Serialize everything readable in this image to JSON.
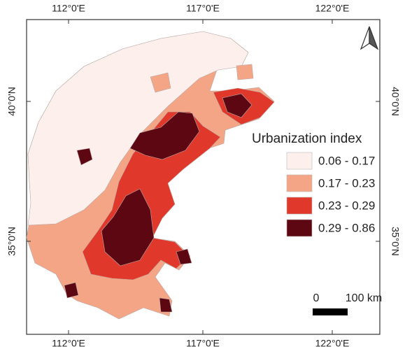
{
  "map": {
    "graticule": {
      "top": [
        "112°0'E",
        "117°0'E",
        "122°0'E"
      ],
      "bottom": [
        "112°0'E",
        "117°0'E",
        "122°0'E"
      ],
      "left": [
        "40°0'N",
        "35°0'N"
      ],
      "right": [
        "40°0'N",
        "35°0'N"
      ]
    },
    "legend": {
      "title": "Urbanization index",
      "items": [
        {
          "label": "0.06 - 0.17",
          "color": "#fdf0ec"
        },
        {
          "label": "0.17 - 0.23",
          "color": "#f4a585"
        },
        {
          "label": "0.23 - 0.29",
          "color": "#e0392b"
        },
        {
          "label": "0.29 - 0.86",
          "color": "#5c0712"
        }
      ]
    },
    "scale_bar": {
      "start": "0",
      "end": "100 km"
    }
  }
}
